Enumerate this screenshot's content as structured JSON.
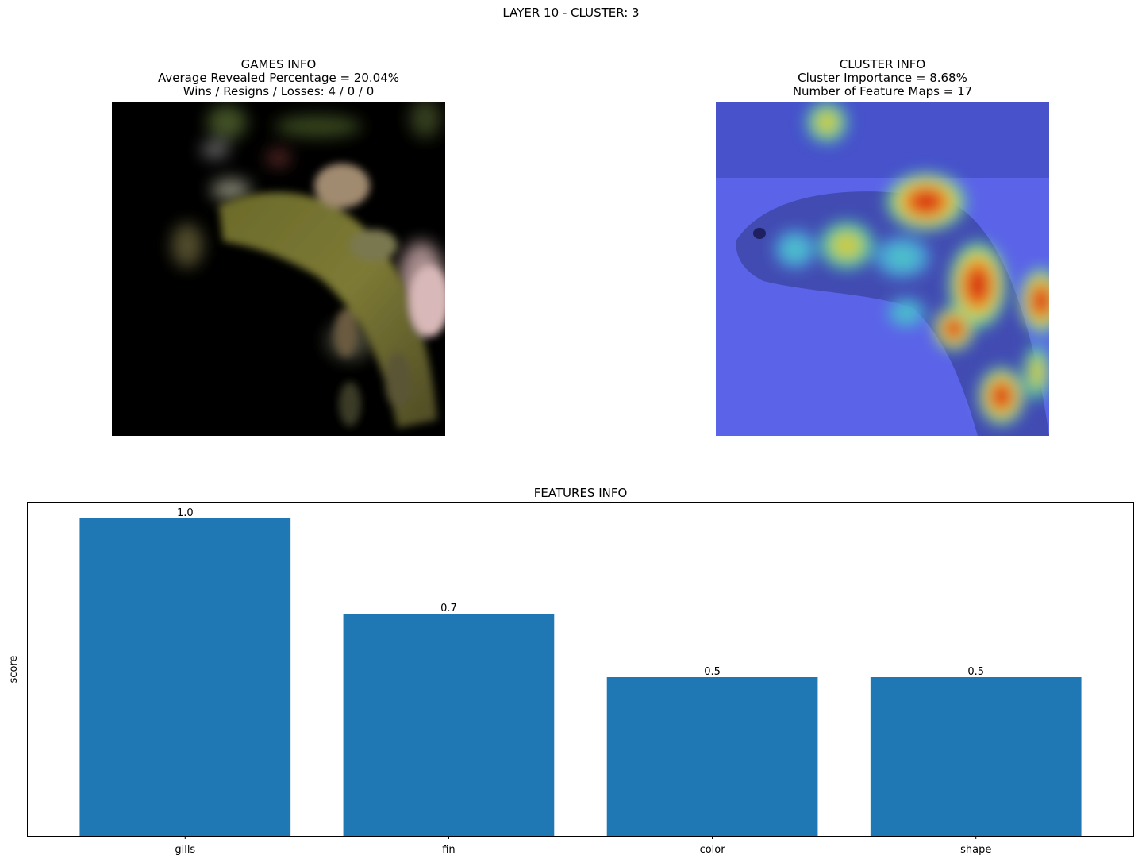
{
  "suptitle": "LAYER 10 - CLUSTER: 3",
  "games": {
    "title": "GAMES INFO",
    "line1": "Average Revealed Percentage = 20.04%",
    "line2": "Wins / Resigns / Losses: 4 / 0 / 0"
  },
  "cluster": {
    "title": "CLUSTER INFO",
    "line1": "Cluster Importance = 8.68%",
    "line2": "Number of Feature Maps = 17"
  },
  "chart_data": {
    "type": "bar",
    "title": "FEATURES INFO",
    "ylabel": "score",
    "xlabel": "",
    "categories": [
      "gills",
      "fin",
      "color",
      "shape"
    ],
    "values": [
      1.0,
      0.7,
      0.5,
      0.5
    ],
    "value_labels": [
      "1.0",
      "0.7",
      "0.5",
      "0.5"
    ],
    "ylim": [
      0,
      1.05
    ],
    "yticks_visible": false,
    "bar_color": "#1f77b4",
    "grid": false
  }
}
